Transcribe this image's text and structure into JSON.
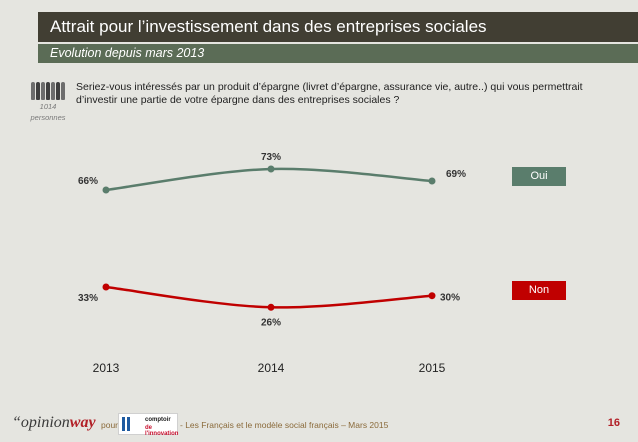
{
  "header": {
    "title": "Attrait pour l’investissement dans des entreprises sociales",
    "subtitle": "Evolution depuis mars 2013"
  },
  "respondents": {
    "line1": "1014",
    "line2": "personnes"
  },
  "question": "Seriez-vous intéressés par un produit d’épargne (livret d’épargne, assurance vie, autre..) qui vous permettrait d’investir une partie de votre épargne dans des entreprises sociales ?",
  "chart_data": {
    "type": "line",
    "x": [
      "2013",
      "2014",
      "2015"
    ],
    "series": [
      {
        "name": "Oui",
        "values": [
          66,
          73,
          69
        ],
        "labels": [
          "66%",
          "73%",
          "69%"
        ],
        "color": "#5a7d6c"
      },
      {
        "name": "Non",
        "values": [
          33,
          26,
          30
        ],
        "labels": [
          "33%",
          "26%",
          "30%"
        ],
        "color": "#c00000"
      }
    ],
    "title": "",
    "xlabel": "",
    "ylabel": "",
    "grid": false,
    "legend": "right"
  },
  "footer": {
    "logo_part1": "“opinion",
    "logo_part2": "way",
    "pour": "pour",
    "partner_top": "comptoir",
    "partner_bottom": "de l'innovation",
    "caption": "- Les Français et le modèle social français – Mars 2015",
    "page_number": "16"
  }
}
